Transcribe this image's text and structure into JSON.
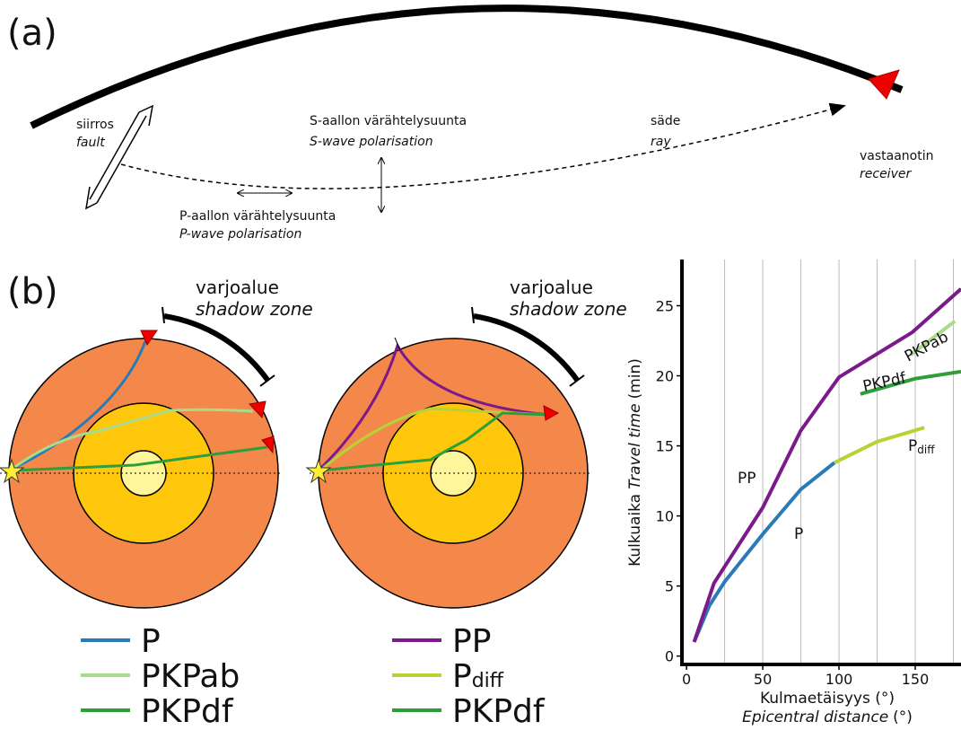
{
  "panel_a": {
    "label": "(a)",
    "fault_fi": "siirros",
    "fault_en": "fault",
    "s_wave_fi": "S-aallon värähtelysuunta",
    "s_wave_en": "S-wave polarisation",
    "ray_fi": "säde",
    "ray_en": "ray",
    "receiver_fi": "vastaanotin",
    "receiver_en": "receiver",
    "p_wave_fi": "P-aallon värähtelysuunta",
    "p_wave_en": "P-wave polarisation"
  },
  "panel_b": {
    "label": "(b)",
    "shadow_fi": "varjoalue",
    "shadow_en": "shadow zone",
    "legend_left": [
      {
        "text": "P",
        "color": "#2a7ab8"
      },
      {
        "text": "PKPab",
        "color": "#a8dc8c"
      },
      {
        "text": "PKPdf",
        "color": "#2e9e3a"
      }
    ],
    "legend_right": [
      {
        "text": "PP",
        "color": "#7b1a8a"
      },
      {
        "text": "P",
        "sub": "diff",
        "color": "#b5d334"
      },
      {
        "text": "PKPdf",
        "color": "#2e9e3a"
      }
    ]
  },
  "chart_data": {
    "type": "line",
    "ylabel_fi": "Kulkuaika",
    "ylabel_en": "Travel time",
    "ylabel_unit": "(min)",
    "xlabel": "Kulmaetäisyys (°)",
    "xlabel_en": "Epicentral distance",
    "xlabel_unit": "(°)",
    "xlim": [
      -3,
      180
    ],
    "ylim": [
      -0.6,
      28.3
    ],
    "xticks": [
      0,
      50,
      100,
      150
    ],
    "xgrid": [
      25,
      50,
      75,
      100,
      125,
      150,
      175
    ],
    "yticks": [
      0,
      5,
      10,
      15,
      20,
      25
    ],
    "series": [
      {
        "name": "P",
        "color": "#2a7ab8",
        "x": [
          5,
          15,
          25,
          50,
          75,
          97
        ],
        "values": [
          1,
          3.6,
          5.3,
          8.7,
          11.9,
          13.8
        ]
      },
      {
        "name": "P",
        "name_sub": "diff",
        "color": "#b5d334",
        "x": [
          97,
          125,
          156
        ],
        "values": [
          13.8,
          15.3,
          16.3
        ]
      },
      {
        "name": "PP",
        "color": "#7b1a8a",
        "x": [
          5,
          18,
          50,
          75,
          100,
          148,
          180
        ],
        "values": [
          1,
          5.2,
          10.6,
          16.1,
          19.9,
          23.1,
          26.2
        ]
      },
      {
        "name": "PKPab",
        "color": "#a8dc8c",
        "x": [
          147,
          176
        ],
        "values": [
          21.5,
          23.9
        ]
      },
      {
        "name": "PKPdf",
        "color": "#2e9e3a",
        "x": [
          114,
          150,
          180
        ],
        "values": [
          18.7,
          19.8,
          20.3
        ]
      }
    ]
  }
}
